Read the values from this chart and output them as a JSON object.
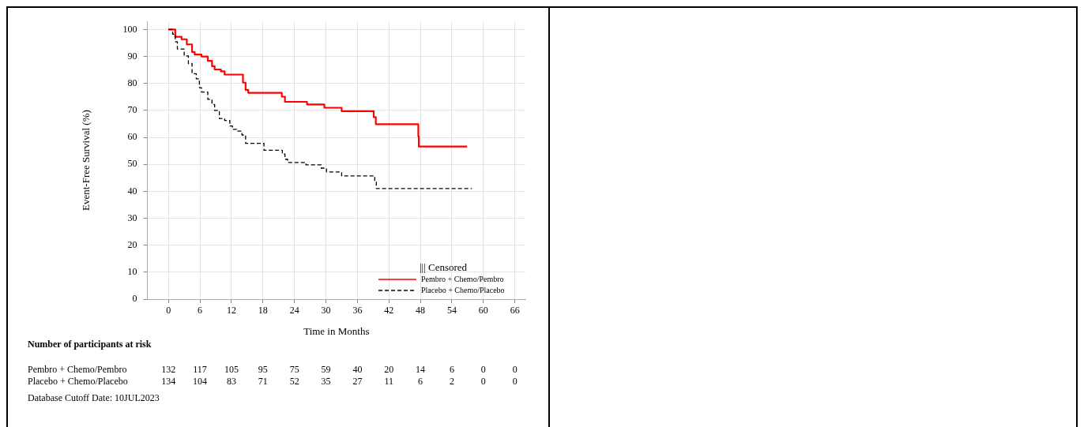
{
  "chart_data": {
    "type": "step",
    "xlabel": "Time in Months",
    "ylabel": "Event-Free Survival (%)",
    "legend_title": "||| Censored",
    "legend": "bottom right",
    "grid": true,
    "xlim": [
      -4,
      68
    ],
    "xticks": [
      0,
      6,
      12,
      18,
      24,
      30,
      36,
      42,
      48,
      54,
      60,
      66
    ],
    "ylim": [
      0,
      103
    ],
    "yticks": [
      0,
      10,
      20,
      30,
      40,
      50,
      60,
      70,
      80,
      90,
      100
    ],
    "series": [
      {
        "name": "Pembro + Chemo/Pembro",
        "color": "#ff0000",
        "line_style": "solid",
        "x": [
          0,
          1.3,
          2.5,
          3.5,
          4.5,
          5,
          6.3,
          7.5,
          8.3,
          8.8,
          10,
          10.7,
          14.2,
          14.7,
          15.2,
          21.6,
          22.2,
          26.4,
          29.7,
          33.0,
          39.1,
          39.5,
          47.6,
          47.7,
          56.9
        ],
        "values": [
          100,
          97.3,
          96.4,
          94.5,
          91.7,
          90.7,
          90,
          88.4,
          86.4,
          85.2,
          84.5,
          83.3,
          80.3,
          77.6,
          76.5,
          75.1,
          73.2,
          72.2,
          71.0,
          69.7,
          67.5,
          64.9,
          60.4,
          56.6,
          56.6
        ]
      },
      {
        "name": "Placebo + Chemo/Placebo",
        "color": "#000000",
        "line_style": "dashed",
        "x": [
          0,
          0.8,
          1.3,
          1.7,
          3.0,
          3.8,
          4.5,
          5.3,
          5.9,
          6.3,
          7.5,
          8.3,
          8.8,
          9.7,
          10.7,
          11.7,
          12.2,
          13,
          14,
          14.7,
          18.2,
          21.7,
          22.2,
          22.7,
          26.2,
          29.1,
          30.1,
          33.0,
          39.3,
          39.6,
          57.8
        ],
        "values": [
          100,
          98.3,
          95.5,
          92.8,
          90.2,
          87.4,
          83.6,
          81.7,
          78.4,
          76.8,
          74.1,
          72.2,
          70.0,
          67.0,
          66.3,
          64.2,
          63.0,
          62.3,
          60.9,
          57.8,
          55.2,
          53.8,
          51.9,
          50.7,
          49.8,
          48.6,
          47.2,
          45.7,
          43.4,
          41.0,
          41.0
        ]
      }
    ],
    "annotations": [
      "Number of participants at risk",
      "Pembro + Chemo/Pembro",
      "132",
      "117",
      "105",
      "95",
      "75",
      "59",
      "40",
      "20",
      "14",
      "6",
      "0",
      "0",
      "Placebo + Chemo/Placebo",
      "134",
      "104",
      "83",
      "71",
      "52",
      "35",
      "27",
      "11",
      "6",
      "2",
      "0",
      "0",
      "Database Cutoff Date: 10JUL2023"
    ]
  }
}
